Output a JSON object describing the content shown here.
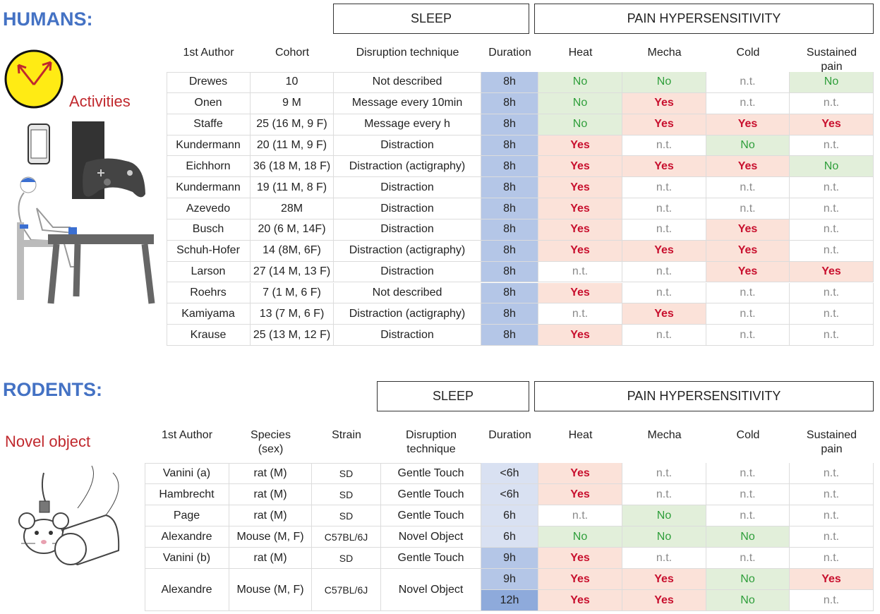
{
  "humans": {
    "title": "HUMANS:",
    "label": "Activities",
    "groups": [
      "SLEEP",
      "PAIN HYPERSENSITIVITY"
    ],
    "columns": [
      "1st Author",
      "Cohort",
      "Disruption technique",
      "Duration",
      "Heat",
      "Mecha",
      "Cold",
      "Sustained pain"
    ],
    "duration_shades": {
      "8h": "#b4c6e7"
    },
    "rows": [
      [
        "Drewes",
        "10",
        "Not described",
        "8h",
        "No",
        "No",
        "n.t.",
        "No"
      ],
      [
        "Onen",
        "9 M",
        "Message every 10min",
        "8h",
        "No",
        "Yes",
        "n.t.",
        "n.t."
      ],
      [
        "Staffe",
        "25 (16 M, 9 F)",
        "Message every h",
        "8h",
        "No",
        "Yes",
        "Yes",
        "Yes"
      ],
      [
        "Kundermann",
        "20 (11 M, 9 F)",
        "Distraction",
        "8h",
        "Yes",
        "n.t.",
        "No",
        "n.t."
      ],
      [
        "Eichhorn",
        "36 (18 M, 18 F)",
        "Distraction (actigraphy)",
        "8h",
        "Yes",
        "Yes",
        "Yes",
        "No"
      ],
      [
        "Kundermann",
        "19 (11 M, 8 F)",
        "Distraction",
        "8h",
        "Yes",
        "n.t.",
        "n.t.",
        "n.t."
      ],
      [
        "Azevedo",
        "28M",
        "Distraction",
        "8h",
        "Yes",
        "n.t.",
        "n.t.",
        "n.t."
      ],
      [
        "Busch",
        "20 (6 M, 14F)",
        "Distraction",
        "8h",
        "Yes",
        "n.t.",
        "Yes",
        "n.t."
      ],
      [
        "Schuh-Hofer",
        "14 (8M, 6F)",
        "Distraction (actigraphy)",
        "8h",
        "Yes",
        "Yes",
        "Yes",
        "n.t."
      ],
      [
        "Larson",
        "27 (14 M, 13 F)",
        "Distraction",
        "8h",
        "n.t.",
        "n.t.",
        "Yes",
        "Yes"
      ],
      [
        "Roehrs",
        "7 (1 M, 6 F)",
        "Not described",
        "8h",
        "Yes",
        "n.t.",
        "n.t.",
        "n.t."
      ],
      [
        "Kamiyama",
        "13 (7 M, 6 F)",
        "Distraction (actigraphy)",
        "8h",
        "n.t.",
        "Yes",
        "n.t.",
        "n.t."
      ],
      [
        "Krause",
        "25 (13 M, 12 F)",
        "Distraction",
        "8h",
        "Yes",
        "n.t.",
        "n.t.",
        "n.t."
      ]
    ]
  },
  "rodents": {
    "title": "RODENTS:",
    "label": "Novel object",
    "groups": [
      "SLEEP",
      "PAIN HYPERSENSITIVITY"
    ],
    "columns": [
      "1st Author",
      "Species (sex)",
      "Strain",
      "Disruption technique",
      "Duration",
      "Heat",
      "Mecha",
      "Cold",
      "Sustained pain"
    ],
    "duration_shades": {
      "<6h": "#d9e1f2",
      "6h": "#d9e1f2",
      "9h": "#b4c6e7",
      "12h": "#8eaadb"
    },
    "rows": [
      {
        "author": "Vanini (a)",
        "species": "rat (M)",
        "strain": "SD",
        "technique": "Gentle Touch",
        "results": [
          [
            "<6h",
            "Yes",
            "n.t.",
            "n.t.",
            "n.t."
          ]
        ]
      },
      {
        "author": "Hambrecht",
        "species": "rat (M)",
        "strain": "SD",
        "technique": "Gentle Touch",
        "results": [
          [
            "<6h",
            "Yes",
            "n.t.",
            "n.t.",
            "n.t."
          ]
        ]
      },
      {
        "author": "Page",
        "species": "rat (M)",
        "strain": "SD",
        "technique": "Gentle Touch",
        "results": [
          [
            "6h",
            "n.t.",
            "No",
            "n.t.",
            "n.t."
          ]
        ]
      },
      {
        "author": "Alexandre",
        "species": "Mouse (M, F)",
        "strain": "C57BL/6J",
        "technique": "Novel Object",
        "results": [
          [
            "6h",
            "No",
            "No",
            "No",
            "n.t."
          ]
        ]
      },
      {
        "author": "Vanini (b)",
        "species": "rat (M)",
        "strain": "SD",
        "technique": "Gentle Touch",
        "results": [
          [
            "9h",
            "Yes",
            "n.t.",
            "n.t.",
            "n.t."
          ]
        ]
      },
      {
        "author": "Alexandre",
        "species": "Mouse (M, F)",
        "strain": "C57BL/6J",
        "technique": "Novel Object",
        "results": [
          [
            "9h",
            "Yes",
            "Yes",
            "No",
            "Yes"
          ],
          [
            "12h",
            "Yes",
            "Yes",
            "No",
            "n.t."
          ]
        ]
      }
    ]
  },
  "outcome_styles": {
    "Yes": {
      "color": "#c8102e",
      "bg": "#fbe2d9",
      "weight": "bold"
    },
    "No": {
      "color": "#2e9e3a",
      "bg": "#e2efda",
      "weight": "normal"
    },
    "n.t.": {
      "color": "#8a8a8a",
      "bg": "#ffffff",
      "weight": "normal"
    }
  }
}
